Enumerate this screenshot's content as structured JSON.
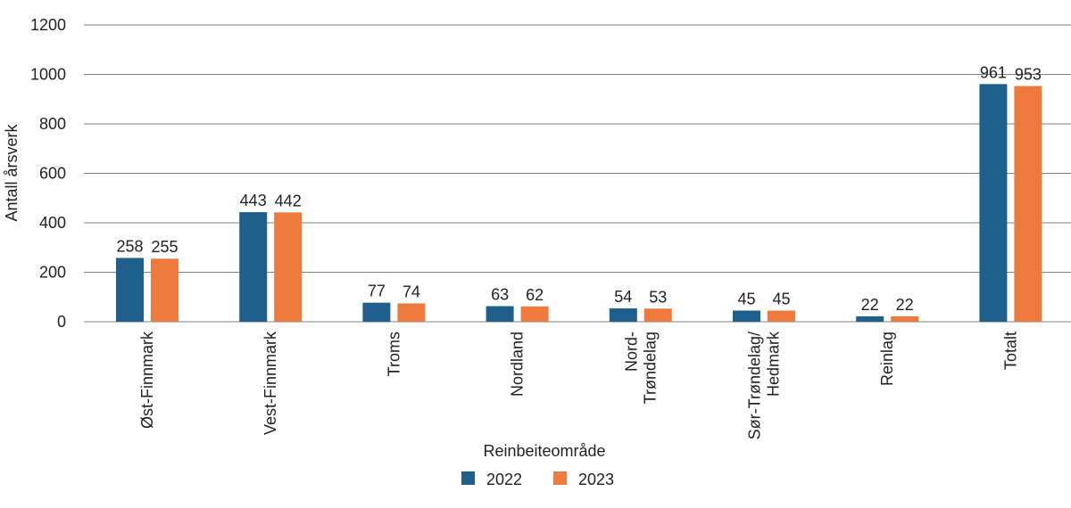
{
  "chart_data": {
    "type": "bar",
    "ylabel": "Antall årsverk",
    "xlabel": "Reinbeiteområde",
    "ylim": [
      0,
      1200
    ],
    "yticks": [
      0,
      200,
      400,
      600,
      800,
      1000,
      1200
    ],
    "grid": true,
    "legend_position": "bottom",
    "categories": [
      [
        "Øst-Finnmark"
      ],
      [
        "Vest-Finnmark"
      ],
      [
        "Troms"
      ],
      [
        "Nordland"
      ],
      [
        "Nord-",
        "Trøndelag"
      ],
      [
        "Sør-Trøndelag/",
        "Hedmark"
      ],
      [
        "Reinlag"
      ],
      [
        "Totalt"
      ]
    ],
    "series": [
      {
        "name": "2022",
        "color": "#1f5f8b",
        "values": [
          258,
          443,
          77,
          63,
          54,
          45,
          22,
          961
        ]
      },
      {
        "name": "2023",
        "color": "#ef7a3d",
        "values": [
          255,
          442,
          74,
          62,
          53,
          45,
          22,
          953
        ]
      }
    ]
  }
}
